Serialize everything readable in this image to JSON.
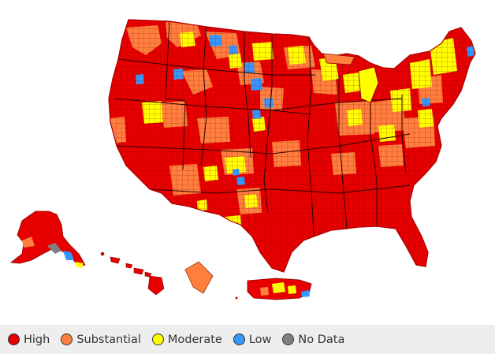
{
  "legend": [
    {
      "label": "High",
      "color": "#e60000"
    },
    {
      "label": "Substantial",
      "color": "#ff7f3f"
    },
    {
      "label": "Moderate",
      "color": "#ffff00"
    },
    {
      "label": "Low",
      "color": "#3399ff"
    },
    {
      "label": "No Data",
      "color": "#808080"
    }
  ],
  "colors": {
    "border": "#7a0000",
    "outline": "#b30000",
    "legend_bg": "#eeeeee"
  }
}
